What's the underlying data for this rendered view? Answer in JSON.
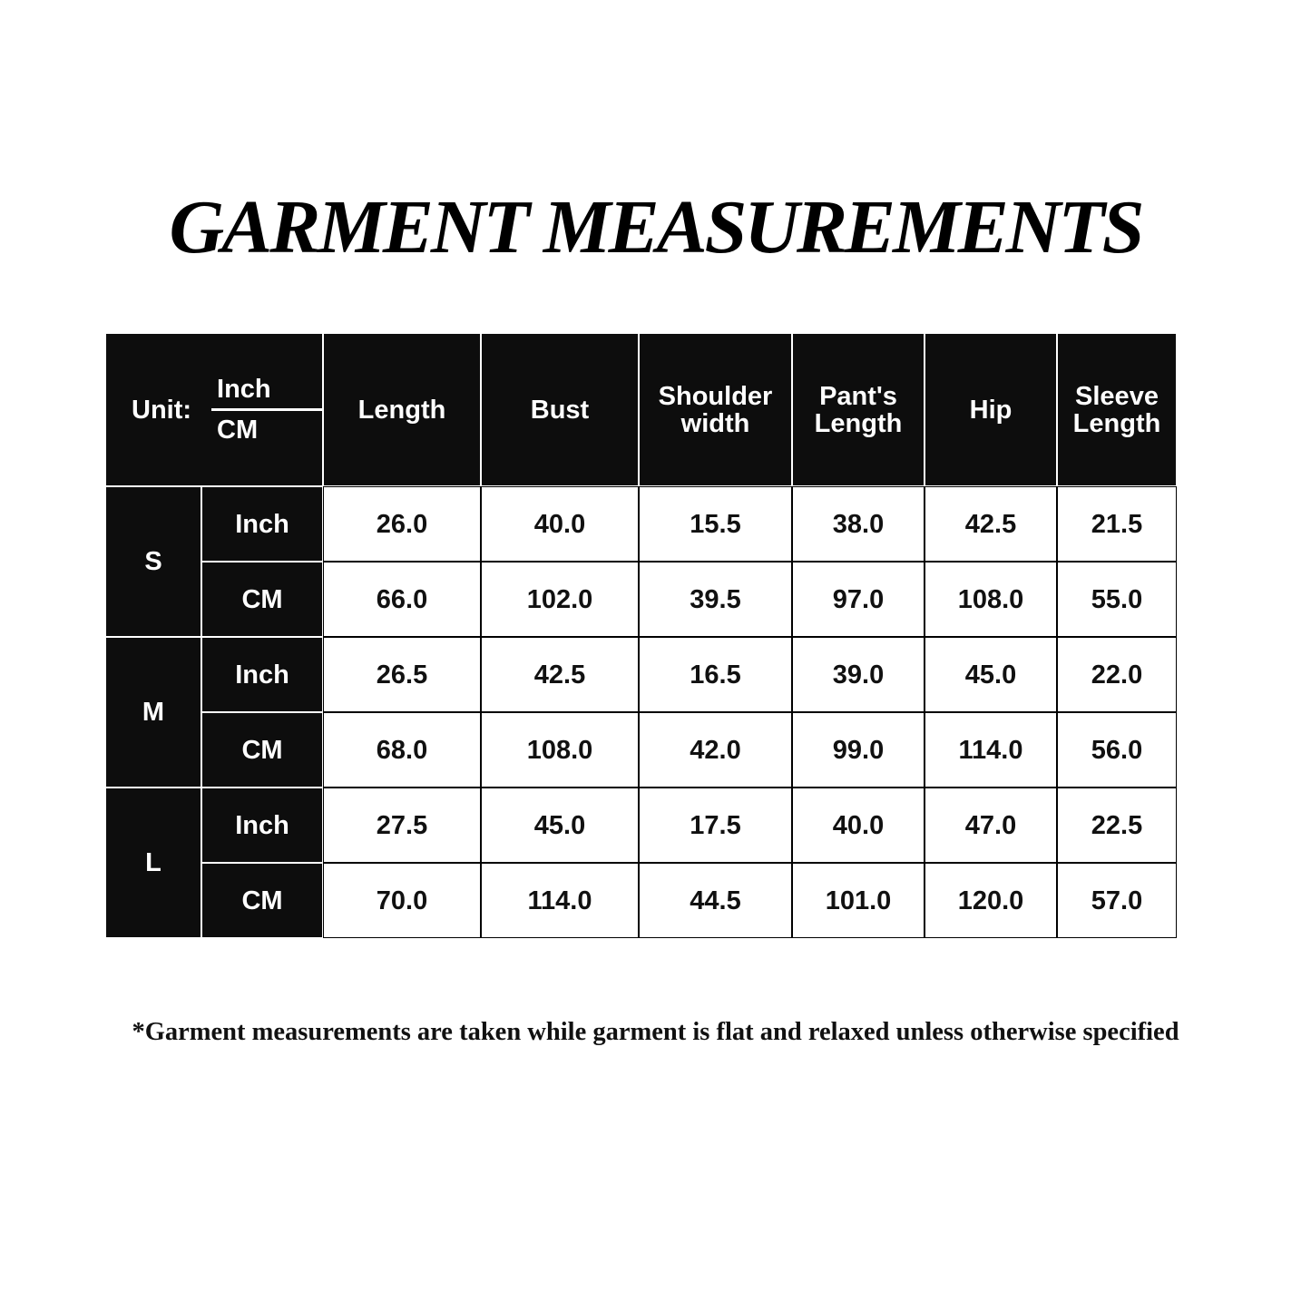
{
  "title": "GARMENT MEASUREMENTS",
  "table": {
    "unit_label": "Unit:",
    "unit_top": "Inch",
    "unit_bottom": "CM",
    "columns": [
      [
        "Length"
      ],
      [
        "Bust"
      ],
      [
        "Shoulder",
        "width"
      ],
      [
        "Pant's",
        "Length"
      ],
      [
        "Hip"
      ],
      [
        "Sleeve",
        "Length"
      ]
    ],
    "sizes": [
      {
        "size": "S",
        "rows": [
          {
            "unit": "Inch",
            "values": [
              "26.0",
              "40.0",
              "15.5",
              "38.0",
              "42.5",
              "21.5"
            ]
          },
          {
            "unit": "CM",
            "values": [
              "66.0",
              "102.0",
              "39.5",
              "97.0",
              "108.0",
              "55.0"
            ]
          }
        ]
      },
      {
        "size": "M",
        "rows": [
          {
            "unit": "Inch",
            "values": [
              "26.5",
              "42.5",
              "16.5",
              "39.0",
              "45.0",
              "22.0"
            ]
          },
          {
            "unit": "CM",
            "values": [
              "68.0",
              "108.0",
              "42.0",
              "99.0",
              "114.0",
              "56.0"
            ]
          }
        ]
      },
      {
        "size": "L",
        "rows": [
          {
            "unit": "Inch",
            "values": [
              "27.5",
              "45.0",
              "17.5",
              "40.0",
              "47.0",
              "22.5"
            ]
          },
          {
            "unit": "CM",
            "values": [
              "70.0",
              "114.0",
              "44.5",
              "101.0",
              "120.0",
              "57.0"
            ]
          }
        ]
      }
    ]
  },
  "footnote": "*Garment measurements are taken while garment is flat and relaxed unless otherwise specified"
}
